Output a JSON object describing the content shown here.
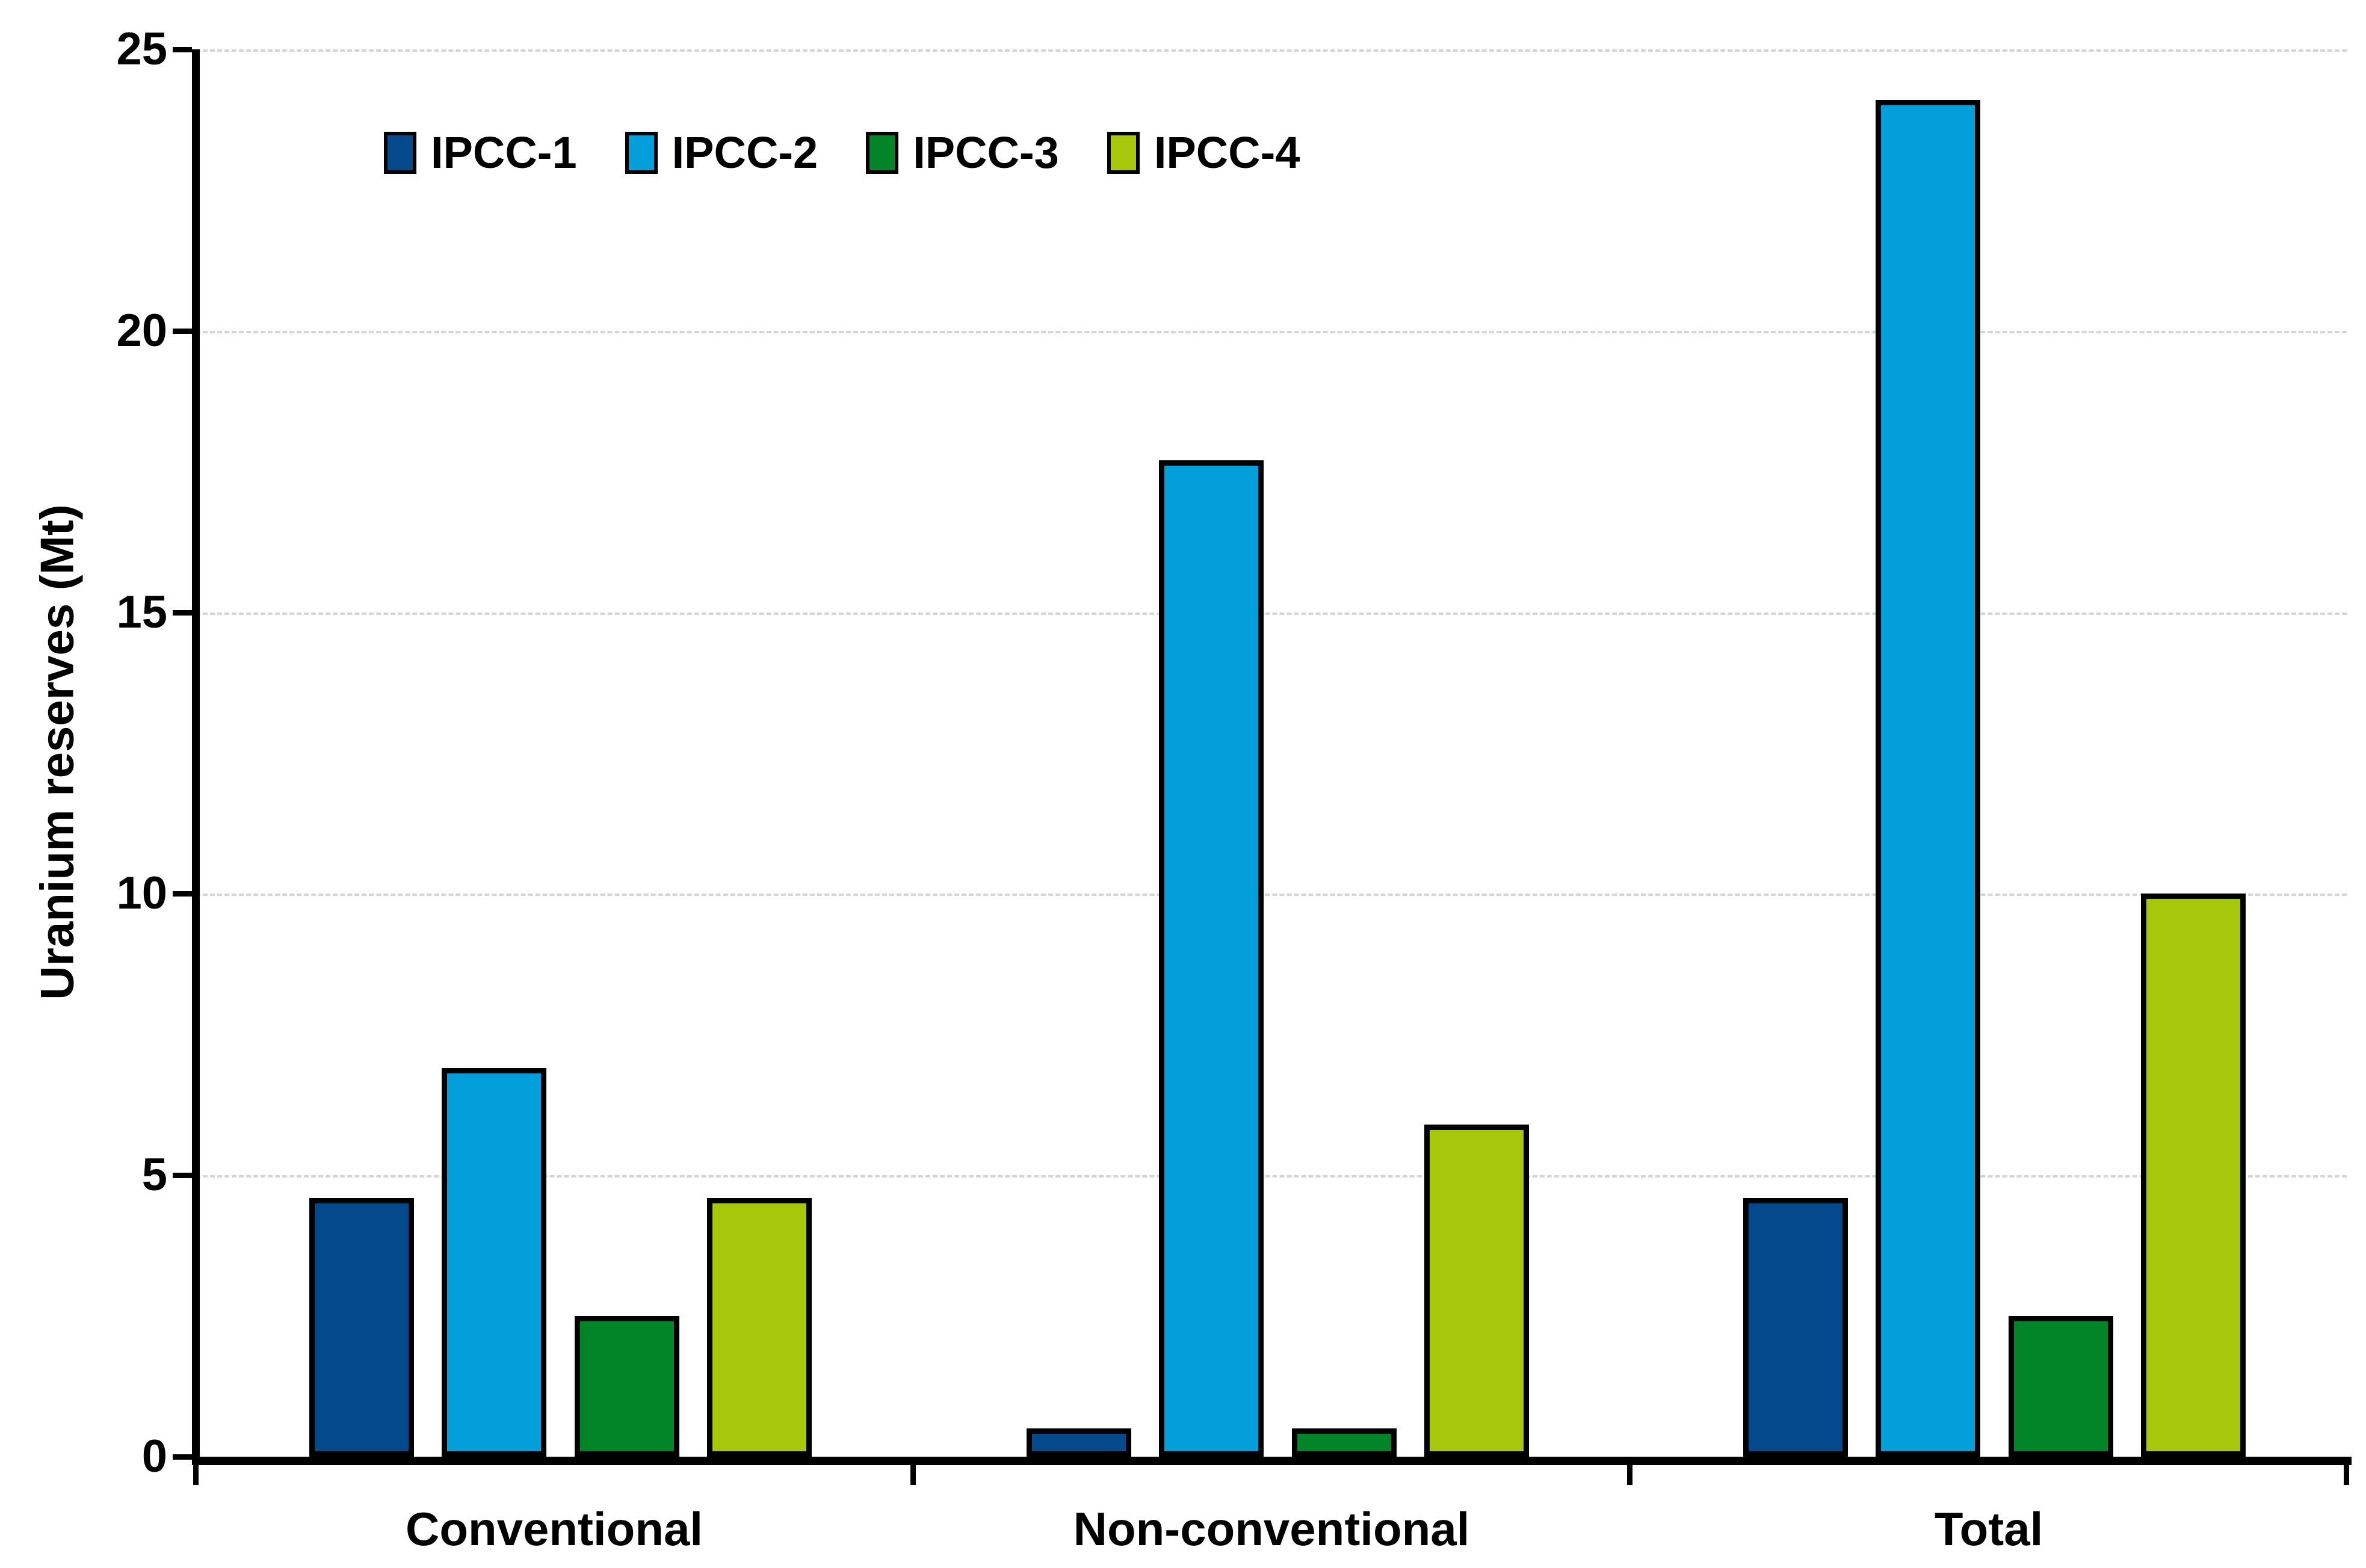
{
  "chart_data": {
    "type": "bar",
    "title": "",
    "xlabel": "",
    "ylabel": "Uranium reserves (Mt)",
    "categories": [
      "Conventional",
      "Non-conventional",
      "Total"
    ],
    "series": [
      {
        "name": "IPCC-1",
        "color": "#04498C",
        "values": [
          4.6,
          0.5,
          4.6
        ]
      },
      {
        "name": "IPCC-2",
        "color": "#029FDB",
        "values": [
          6.9,
          17.7,
          24.1
        ]
      },
      {
        "name": "IPCC-3",
        "color": "#028428",
        "values": [
          2.5,
          0.5,
          2.5
        ]
      },
      {
        "name": "IPCC-4",
        "color": "#A7C70A",
        "values": [
          4.6,
          5.9,
          10.0
        ]
      }
    ],
    "ylim": [
      0,
      25
    ],
    "yticks": [
      0,
      5,
      10,
      15,
      20,
      25
    ],
    "grid": true,
    "gridline_color": "#D6D6D6",
    "axis_color": "#000000",
    "bar_border_color": "#000000",
    "legend_position": "top-left"
  }
}
